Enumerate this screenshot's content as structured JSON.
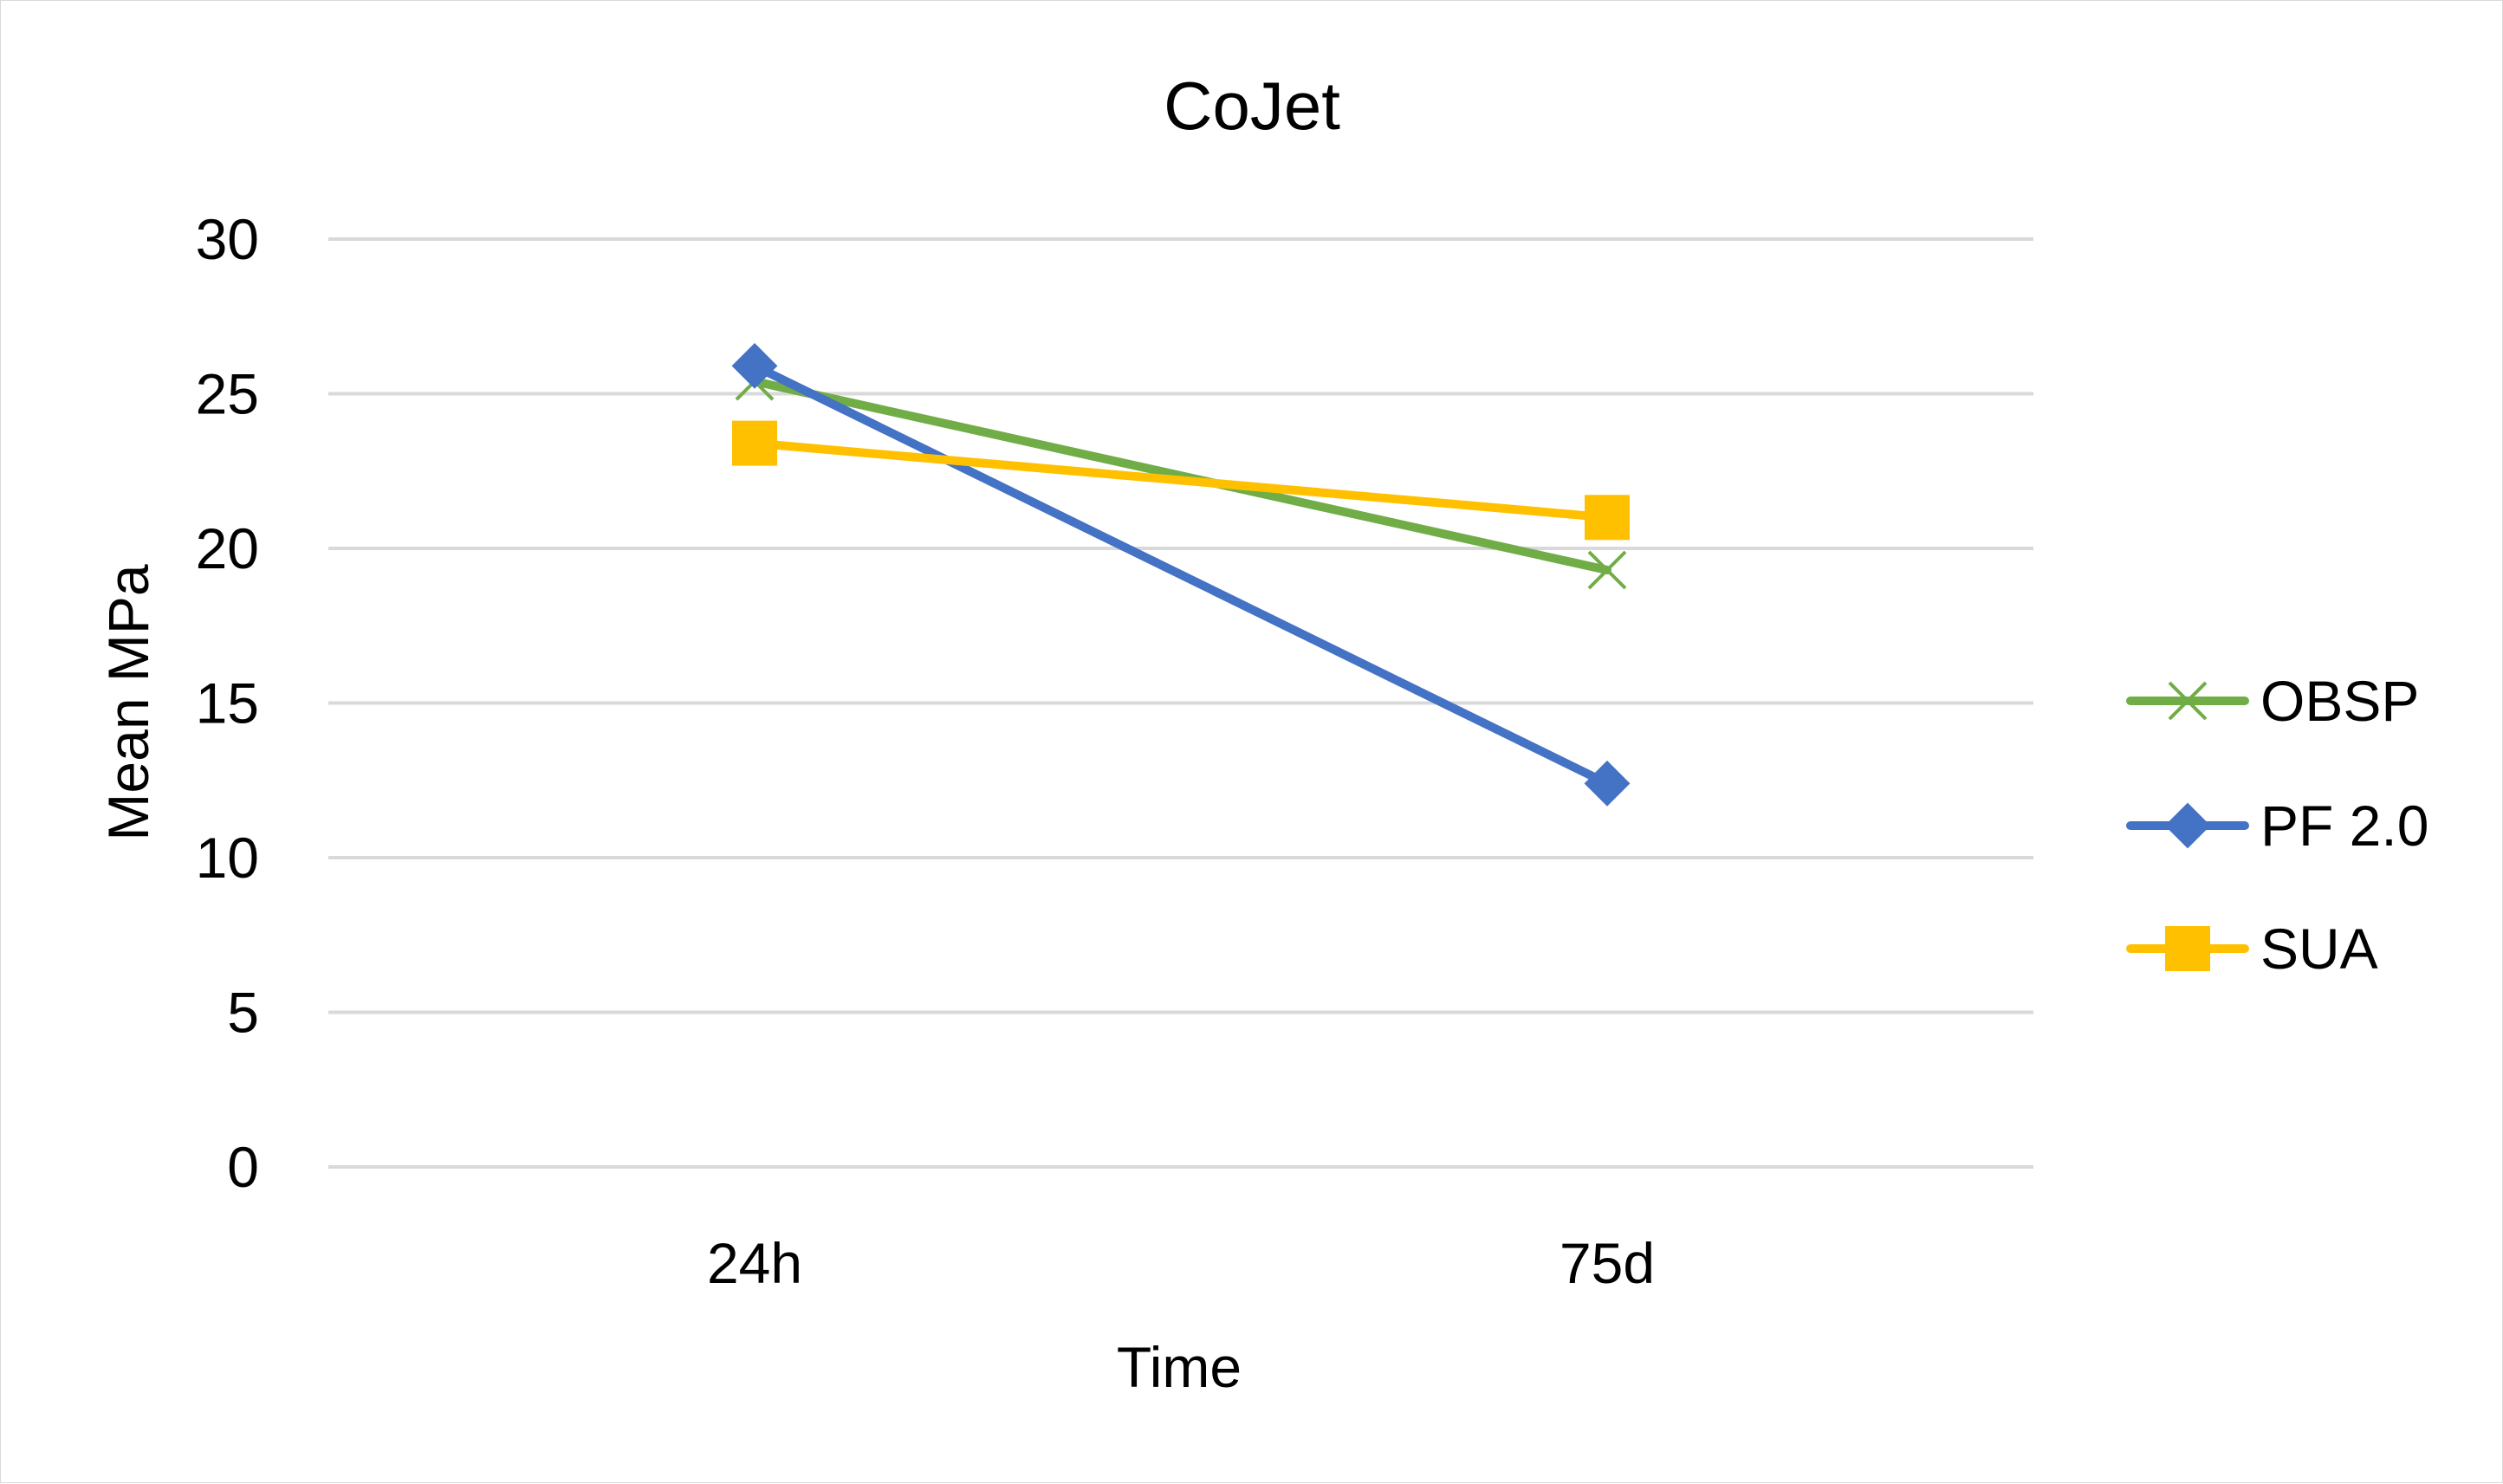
{
  "chart_data": {
    "type": "line",
    "title": "CoJet",
    "xlabel": "Time",
    "ylabel": "Mean MPa",
    "categories": [
      "24h",
      "75d"
    ],
    "ylim": [
      0,
      30
    ],
    "yticks": [
      0,
      5,
      10,
      15,
      20,
      25,
      30
    ],
    "grid": true,
    "legend_position": "right",
    "series": [
      {
        "name": "OBSP",
        "values": [
          25.4,
          19.3
        ],
        "color": "#70ad47",
        "marker": "x"
      },
      {
        "name": "PF 2.0",
        "values": [
          25.9,
          12.4
        ],
        "color": "#4472c4",
        "marker": "diamond"
      },
      {
        "name": "SUA",
        "values": [
          23.4,
          21.0
        ],
        "color": "#ffc000",
        "marker": "square"
      }
    ]
  }
}
